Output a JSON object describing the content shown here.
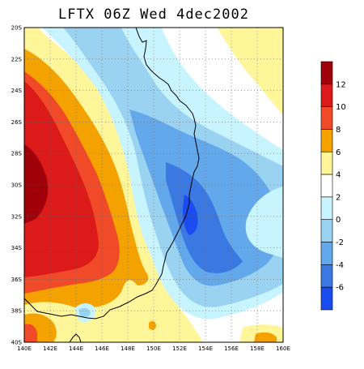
{
  "title": "LFTX 06Z Wed 4dec2002",
  "map": {
    "lat_ticks": [
      "20S",
      "22S",
      "24S",
      "26S",
      "28S",
      "30S",
      "32S",
      "34S",
      "36S",
      "38S",
      "40S"
    ],
    "lon_ticks": [
      "140E",
      "142E",
      "144E",
      "146E",
      "148E",
      "150E",
      "152E",
      "154E",
      "156E",
      "158E",
      "160E"
    ],
    "lat_range": [
      -40,
      -20
    ],
    "lon_range": [
      140,
      160
    ],
    "grid": "dotted"
  },
  "colorbar": {
    "labels": [
      "12",
      "10",
      "8",
      "6",
      "4",
      "2",
      "0",
      "-2",
      "-4",
      "-6"
    ],
    "colors": [
      "#a0000a",
      "#dc1a1a",
      "#f04a28",
      "#f4a200",
      "#fff599",
      "#ffffff",
      "#c8f4ff",
      "#9ad2f2",
      "#64a8ec",
      "#3c78e2",
      "#1a4cf0"
    ]
  },
  "palette": {
    "dark_red": "#a0000a",
    "red": "#dc1a1a",
    "orange_red": "#f04a28",
    "orange": "#f4a200",
    "yellow": "#fff599",
    "white": "#ffffff",
    "light_cyan": "#c8f4ff",
    "light_blue": "#9ad2f2",
    "blue": "#64a8ec",
    "mid_blue": "#3c78e2",
    "deep_blue": "#1a4cf0"
  }
}
